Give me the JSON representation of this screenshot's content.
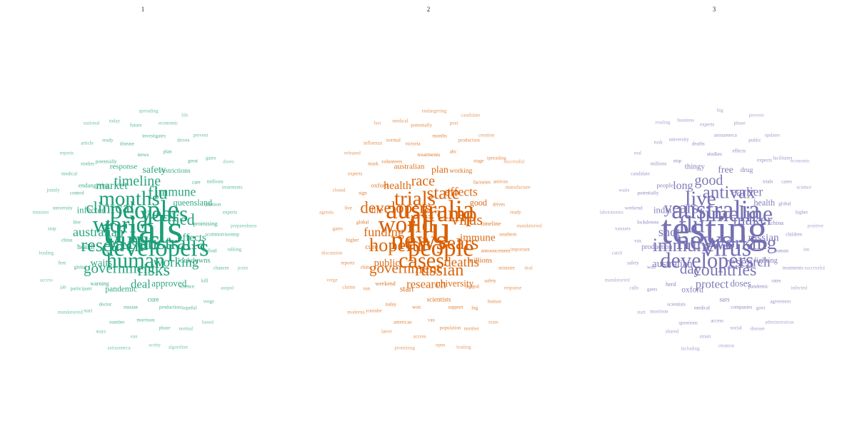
{
  "panels": [
    {
      "title": "1",
      "color": "#1b9e77",
      "words": [
        "trials",
        "virus",
        "people",
        "developers",
        "world",
        "years",
        "human",
        "months",
        "australia",
        "research",
        "flu",
        "risks",
        "clinical",
        "died",
        "government",
        "timeline",
        "working",
        "australian",
        "immune",
        "deal",
        "market",
        "effects",
        "waits",
        "safety",
        "approved",
        "infected",
        "queensland",
        "pandemic",
        "response",
        "lockdowns",
        "health",
        "restrictions",
        "cure",
        "endangering",
        "promising",
        "warning",
        "news",
        "science",
        "live",
        "care",
        "russian",
        "potentially",
        "oxford",
        "global",
        "plan",
        "production",
        "control",
        "johnson",
        "doctor",
        "disease",
        "kill",
        "china",
        "great",
        "morrison",
        "studies",
        "scottmorrisonmp",
        "participant",
        "investigates",
        "hopeful",
        "university",
        "millions",
        "number",
        "ready",
        "chances",
        "free",
        "drives",
        "phase",
        "medical",
        "experts",
        "start",
        "future",
        "verge",
        "stop",
        "gates",
        "vax",
        "article",
        "talking",
        "jab",
        "economic",
        "normal",
        "jointly",
        "treatments",
        "stays",
        "today",
        "auspol",
        "leading",
        "prevent",
        "scotty",
        "reports",
        "preparedness",
        "mandatoried",
        "spreading",
        "based",
        "minister",
        "doses",
        "astrazeneca",
        "national",
        "point",
        "access",
        "life",
        "algorithm"
      ]
    },
    {
      "title": "2",
      "color": "#d95f02",
      "words": [
        "flu",
        "news",
        "australia",
        "people",
        "world",
        "trump",
        "cases",
        "trials",
        "years",
        "hopeful",
        "state",
        "russian",
        "developers",
        "virus",
        "government",
        "race",
        "deaths",
        "funding",
        "effects",
        "research",
        "health",
        "immune",
        "public",
        "plan",
        "university",
        "life",
        "good",
        "start",
        "australian",
        "millions",
        "cure",
        "working",
        "scientists",
        "oxford",
        "timeline",
        "weekend",
        "treatments",
        "auspol",
        "global",
        "factories",
        "won",
        "volunteers",
        "announcement",
        "china",
        "abc",
        "support",
        "sign",
        "drives",
        "today",
        "victoria",
        "safety",
        "higher",
        "stage",
        "vax",
        "mask",
        "southern",
        "run",
        "months",
        "big",
        "live",
        "antivax",
        "american",
        "normal",
        "minister",
        "reports",
        "production",
        "population",
        "experts",
        "ready",
        "youtube",
        "potentially",
        "human",
        "gates",
        "spreading",
        "access",
        "influenza",
        "important",
        "claims",
        "post",
        "number",
        "closed",
        "manufacture",
        "latest",
        "medical",
        "response",
        "discussion",
        "creation",
        "open",
        "released",
        "mandatoried",
        "moderna",
        "endangering",
        "team",
        "agenda",
        "successful",
        "promising",
        "fast",
        "deal",
        "verge",
        "candidate",
        "leading"
      ]
    },
    {
      "title": "3",
      "color": "#7570b3",
      "words": [
        "testing",
        "news",
        "australia",
        "virus",
        "flu",
        "timeline",
        "developers",
        "live",
        "working",
        "immune",
        "antivax",
        "countries",
        "years",
        "maker",
        "day",
        "good",
        "research",
        "shot",
        "earlier",
        "protect",
        "long",
        "russian",
        "australian",
        "free",
        "doses",
        "india",
        "health",
        "oxford",
        "thingy",
        "fighting",
        "production",
        "drug",
        "sars",
        "people",
        "china",
        "herd",
        "studies",
        "pandemic",
        "lockdowns",
        "trials",
        "medical",
        "stop",
        "human",
        "won",
        "effects",
        "companies",
        "potentially",
        "global",
        "scientists",
        "deaths",
        "rates",
        "vax",
        "expects",
        "access",
        "millions",
        "children",
        "gates",
        "astrazeneca",
        "govt",
        "weekend",
        "cases",
        "questions",
        "university",
        "treatments",
        "safety",
        "public",
        "social",
        "candidate",
        "higher",
        "morrison",
        "experts",
        "agreement",
        "vaxxers",
        "facilitates",
        "strain",
        "rush",
        "isn",
        "calls",
        "phase",
        "disease",
        "waits",
        "science",
        "shared",
        "business",
        "infected",
        "catch",
        "updates",
        "creation",
        "real",
        "positive",
        "start",
        "big",
        "administration",
        "laboratories",
        "economic",
        "including",
        "reading",
        "successful",
        "mandatoried",
        "prevent"
      ]
    }
  ]
}
